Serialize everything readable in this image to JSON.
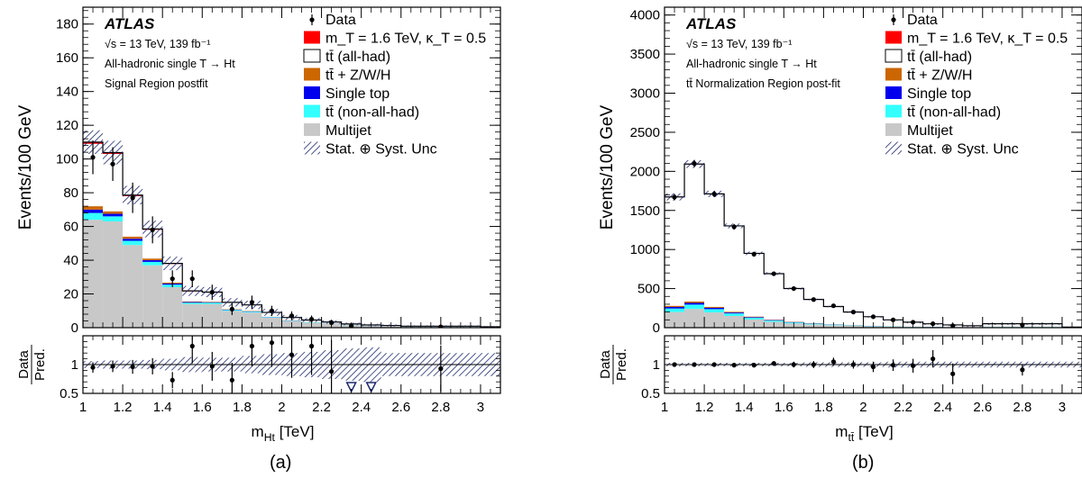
{
  "legend": {
    "data": "Data",
    "signal": "m_T = 1.6 TeV, κ_T = 0.5",
    "ttbar_allhad": "tt̄ (all-had)",
    "ttbar_zwh": "tt̄ + Z/W/H",
    "single_top": "Single top",
    "ttbar_nonallhad": "tt̄ (non-all-had)",
    "multijet": "Multijet",
    "unc": "Stat. ⊕ Syst. Unc"
  },
  "colors": {
    "signal": "#ff0000",
    "ttbar_allhad": "#ffffff",
    "ttbar_zwh": "#cc6600",
    "single_top": "#0000ee",
    "ttbar_nonallhad": "#33ffff",
    "multijet": "#c8c8c8",
    "unc": "#1e2a6e"
  },
  "chart_data": [
    {
      "type": "bar",
      "panel_label": "(a)",
      "atlas": "ATLAS",
      "lumi": "√s = 13 TeV, 139 fb⁻¹",
      "channel": "All-hadronic single T → Ht",
      "region": "Signal Region postfit",
      "xlabel": "m_Ht [TeV]",
      "ylabel": "Events/100 GeV",
      "ratio_ylabel_top": "Data",
      "ratio_ylabel_bottom": "Pred.",
      "xlim": [
        1.0,
        3.1
      ],
      "ylim": [
        0,
        190
      ],
      "ratio_ylim": [
        0.5,
        1.5
      ],
      "xticks": [
        "1",
        "1.2",
        "1.4",
        "1.6",
        "1.8",
        "2",
        "2.2",
        "2.4",
        "2.6",
        "2.8",
        "3"
      ],
      "yticks": [
        "0",
        "20",
        "40",
        "60",
        "80",
        "100",
        "120",
        "140",
        "160",
        "180"
      ],
      "ratio_yticks": [
        "0.5",
        "1"
      ],
      "bin_edges": [
        1.0,
        1.1,
        1.2,
        1.3,
        1.4,
        1.5,
        1.6,
        1.7,
        1.8,
        1.9,
        2.0,
        2.1,
        2.2,
        2.3,
        2.4,
        2.5,
        2.6,
        3.0,
        3.1
      ],
      "stack": {
        "multijet": [
          64,
          63,
          49,
          37,
          24,
          14,
          14,
          10,
          9,
          6,
          4,
          3,
          2.2,
          1.5,
          1.0,
          0.8,
          0.5,
          0.3
        ],
        "ttbar_nonallhad": [
          4,
          3,
          2.5,
          2,
          1.5,
          0.8,
          0.8,
          0.5,
          0.5,
          0.3,
          0.2,
          0.2,
          0.1,
          0.1,
          0.05,
          0.05,
          0.05,
          0.03
        ],
        "single_top": [
          2,
          1.5,
          1.2,
          1,
          0.7,
          0.4,
          0.3,
          0.2,
          0.2,
          0.1,
          0.1,
          0.05,
          0.05,
          0.05,
          0.02,
          0.02,
          0.02,
          0.01
        ],
        "ttbar_zwh": [
          2,
          1.5,
          1.3,
          1,
          0.6,
          0.3,
          0.3,
          0.2,
          0.2,
          0.1,
          0.1,
          0.05,
          0.05,
          0.05,
          0.02,
          0.02,
          0.02,
          0.01
        ],
        "ttbar_allhad": [
          37,
          34,
          24,
          17,
          11,
          6,
          5.5,
          4,
          3.5,
          2.5,
          1.6,
          1.2,
          0.9,
          0.5,
          0.5,
          0.4,
          0.3,
          0.2
        ],
        "signal": [
          1.0,
          0.8,
          0.6,
          0.5,
          0.3,
          0.3,
          0.2,
          0.1,
          0.1,
          0.05,
          0.05,
          0.02,
          0.02,
          0.02,
          0.01,
          0.01,
          0.01,
          0.01
        ]
      },
      "unc": [
        7,
        7,
        5.5,
        5,
        4,
        3,
        3,
        2.5,
        2.5,
        2,
        1.5,
        1.2,
        1,
        0.8,
        0.7,
        0.6,
        0.5,
        0.3
      ],
      "data_x": [
        1.05,
        1.15,
        1.25,
        1.35,
        1.45,
        1.55,
        1.65,
        1.75,
        1.85,
        1.95,
        2.05,
        2.15,
        2.25,
        2.35,
        2.8
      ],
      "data_y": [
        101,
        97,
        77,
        58,
        29,
        29,
        21,
        11,
        15,
        10,
        7,
        5,
        3,
        1,
        0.5
      ],
      "data_err": [
        10,
        10,
        9,
        8,
        5,
        5,
        4.5,
        3.5,
        4,
        3,
        2.6,
        2.2,
        1.7,
        1,
        0.7
      ],
      "ratio_x": [
        1.05,
        1.15,
        1.25,
        1.35,
        1.45,
        1.55,
        1.65,
        1.75,
        1.85,
        1.95,
        2.05,
        2.15,
        2.25,
        2.8
      ],
      "ratio_y": [
        0.95,
        0.97,
        0.96,
        0.97,
        0.73,
        1.32,
        0.97,
        0.73,
        1.32,
        1.38,
        1.17,
        1.32,
        0.88,
        0.93
      ],
      "ratio_err": [
        0.09,
        0.1,
        0.12,
        0.14,
        0.14,
        0.3,
        0.25,
        0.3,
        0.35,
        0.42,
        0.4,
        0.5,
        0.55,
        0.4
      ],
      "ratio_unc": [
        0.06,
        0.07,
        0.07,
        0.08,
        0.1,
        0.13,
        0.12,
        0.12,
        0.15,
        0.18,
        0.2,
        0.22,
        0.25,
        0.28,
        0.3,
        0.2,
        0.2,
        0.2
      ],
      "ratio_below_x": [
        2.35,
        2.45
      ]
    },
    {
      "type": "bar",
      "panel_label": "(b)",
      "atlas": "ATLAS",
      "lumi": "√s = 13 TeV, 139 fb⁻¹",
      "channel": "All-hadronic single T → Ht",
      "region": "tt̄ Normalization Region post-fit",
      "xlabel": "m_tt̄ [TeV]",
      "ylabel": "Events/100 GeV",
      "ratio_ylabel_top": "Data",
      "ratio_ylabel_bottom": "Pred.",
      "xlim": [
        1.0,
        3.1
      ],
      "ylim": [
        0,
        4100
      ],
      "ratio_ylim": [
        0.5,
        1.5
      ],
      "xticks": [
        "1",
        "1.2",
        "1.4",
        "1.6",
        "1.8",
        "2",
        "2.2",
        "2.4",
        "2.6",
        "2.8",
        "3"
      ],
      "yticks": [
        "0",
        "500",
        "1000",
        "1500",
        "2000",
        "2500",
        "3000",
        "3500",
        "4000"
      ],
      "ratio_yticks": [
        "0.5",
        "1"
      ],
      "bin_edges": [
        1.0,
        1.1,
        1.2,
        1.3,
        1.4,
        1.5,
        1.6,
        1.7,
        1.8,
        1.9,
        2.0,
        2.1,
        2.2,
        2.3,
        2.4,
        2.5,
        2.6,
        3.0,
        3.1
      ],
      "stack": {
        "multijet": [
          200,
          240,
          195,
          150,
          105,
          75,
          55,
          42,
          32,
          25,
          18,
          14,
          10,
          8,
          6,
          4,
          10,
          2
        ],
        "ttbar_nonallhad": [
          45,
          55,
          42,
          32,
          22,
          16,
          12,
          9,
          7,
          5,
          4,
          3,
          2,
          2,
          1,
          1,
          2,
          0.5
        ],
        "single_top": [
          20,
          22,
          17,
          12,
          8,
          6,
          5,
          4,
          3,
          2,
          2,
          1,
          1,
          1,
          0.5,
          0.5,
          1,
          0.2
        ],
        "ttbar_zwh": [
          15,
          18,
          13,
          10,
          7,
          5,
          4,
          3,
          2,
          2,
          1,
          1,
          1,
          0.5,
          0.5,
          0.5,
          1,
          0.2
        ],
        "ttbar_allhad": [
          1390,
          1755,
          1443,
          1096,
          808,
          588,
          424,
          302,
          226,
          166,
          115,
          81,
          56,
          38,
          27,
          19,
          36,
          5
        ],
        "signal": [
          3,
          3,
          2,
          2,
          1,
          1,
          1,
          1,
          0.5,
          0.5,
          0.3,
          0.3,
          0.2,
          0.2,
          0.1,
          0.1,
          0.2,
          0.1
        ]
      },
      "unc": [
        45,
        50,
        40,
        30,
        22,
        17,
        13,
        10,
        8,
        6,
        5,
        4,
        3,
        2.5,
        2,
        1.5,
        3,
        1
      ],
      "data_x": [
        1.05,
        1.15,
        1.25,
        1.35,
        1.45,
        1.55,
        1.65,
        1.75,
        1.85,
        1.95,
        2.05,
        2.15,
        2.25,
        2.35,
        2.45,
        2.8
      ],
      "data_y": [
        1670,
        2100,
        1710,
        1290,
        940,
        690,
        500,
        360,
        280,
        200,
        140,
        100,
        70,
        50,
        25,
        35
      ],
      "data_err": [
        41,
        46,
        41,
        36,
        31,
        26,
        22,
        19,
        17,
        14,
        12,
        10,
        8,
        7,
        5,
        6
      ],
      "ratio_x": [
        1.05,
        1.15,
        1.25,
        1.35,
        1.45,
        1.55,
        1.65,
        1.75,
        1.85,
        1.95,
        2.05,
        2.15,
        2.25,
        2.35,
        2.45,
        2.8
      ],
      "ratio_y": [
        1.0,
        1.0,
        1.0,
        0.99,
        0.99,
        1.02,
        1.0,
        1.0,
        1.05,
        1.0,
        0.96,
        0.99,
        0.98,
        1.1,
        0.84,
        0.91
      ],
      "ratio_err": [
        0.03,
        0.03,
        0.03,
        0.03,
        0.04,
        0.04,
        0.05,
        0.06,
        0.07,
        0.07,
        0.09,
        0.1,
        0.12,
        0.15,
        0.18,
        0.1
      ],
      "ratio_unc": [
        0.03,
        0.03,
        0.03,
        0.03,
        0.03,
        0.03,
        0.03,
        0.04,
        0.04,
        0.04,
        0.04,
        0.05,
        0.05,
        0.05,
        0.05,
        0.05,
        0.05,
        0.05
      ],
      "ratio_below_x": []
    }
  ]
}
